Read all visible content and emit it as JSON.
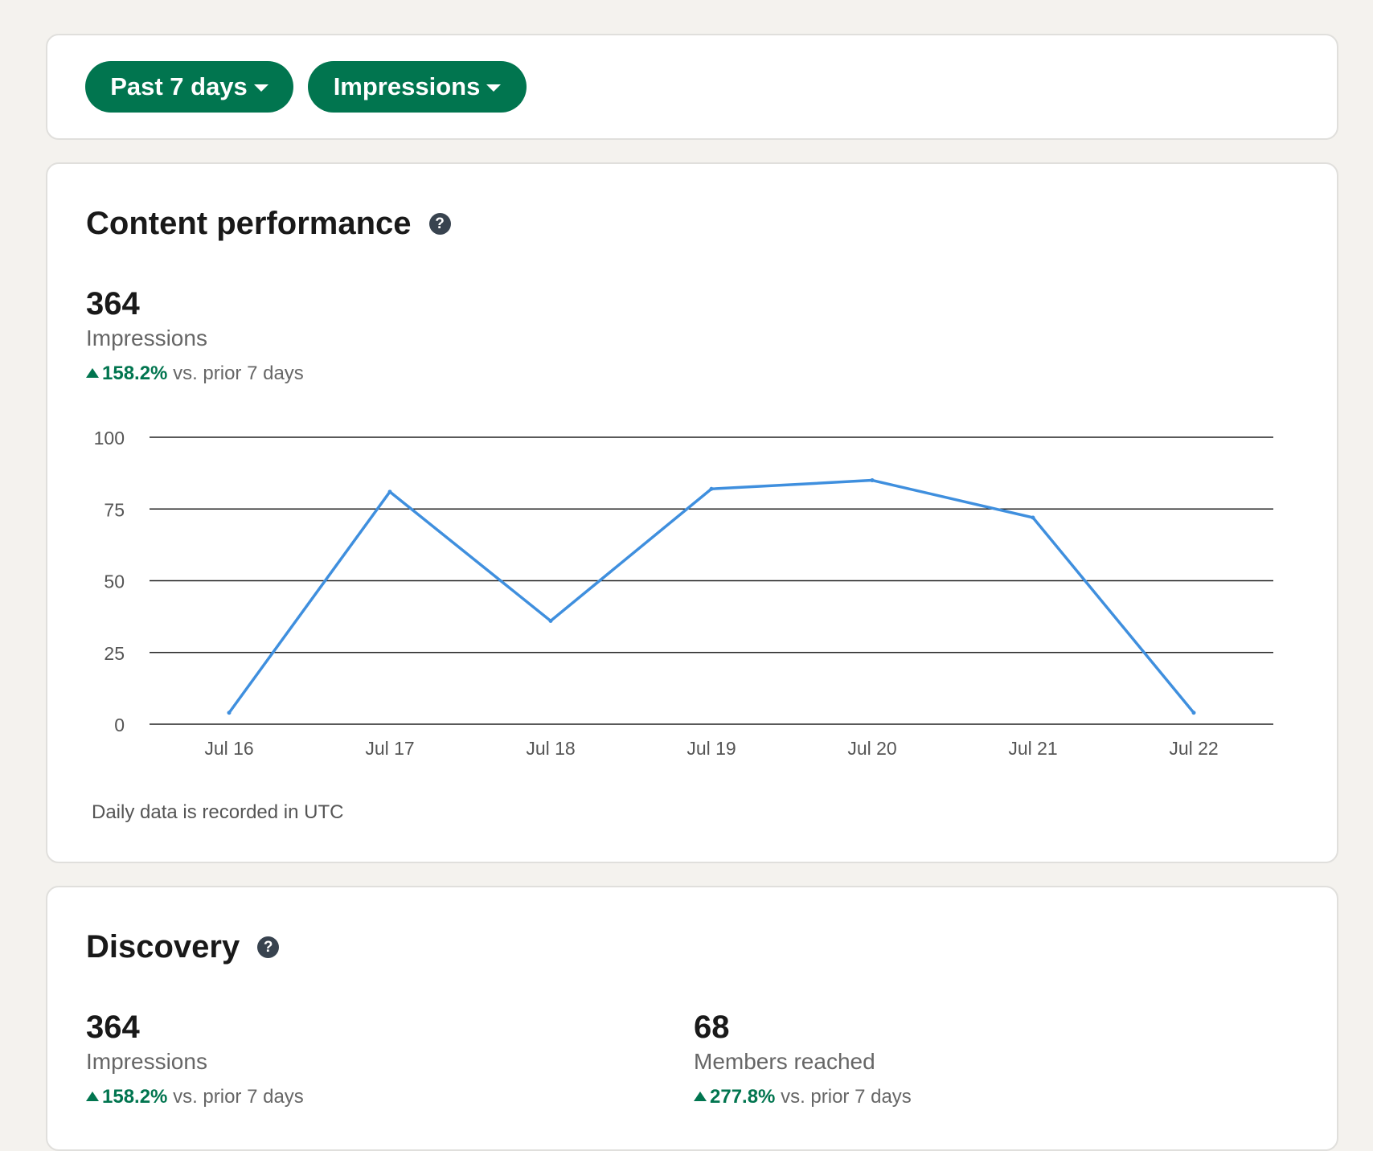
{
  "filters": {
    "range_label": "Past 7 days",
    "metric_label": "Impressions"
  },
  "content_performance": {
    "title": "Content performance",
    "value": "364",
    "label": "Impressions",
    "delta_pct": "158.2%",
    "delta_text": "vs. prior 7 days",
    "footnote": "Daily data is recorded in UTC"
  },
  "discovery": {
    "title": "Discovery",
    "impressions": {
      "value": "364",
      "label": "Impressions",
      "delta_pct": "158.2%",
      "delta_text": "vs. prior 7 days"
    },
    "members": {
      "value": "68",
      "label": "Members reached",
      "delta_pct": "277.8%",
      "delta_text": "vs. prior 7 days"
    }
  },
  "colors": {
    "accent": "#01754f",
    "line": "#3f8fde"
  },
  "chart_data": {
    "type": "line",
    "categories": [
      "Jul 16",
      "Jul 17",
      "Jul 18",
      "Jul 19",
      "Jul 20",
      "Jul 21",
      "Jul 22"
    ],
    "values": [
      4,
      81,
      36,
      82,
      85,
      72,
      4
    ],
    "ylim": [
      0,
      100
    ],
    "yticks": [
      0,
      25,
      50,
      75,
      100
    ],
    "grid": true,
    "title": "",
    "xlabel": "",
    "ylabel": ""
  }
}
